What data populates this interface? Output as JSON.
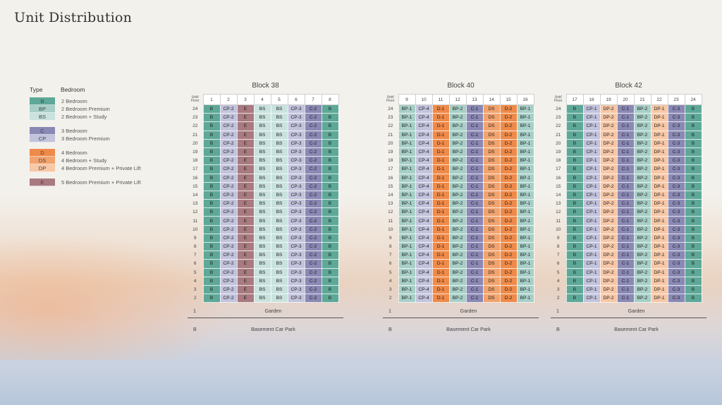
{
  "page": {
    "title": "Unit Distribution"
  },
  "legend": {
    "type_header": "Type",
    "bedroom_header": "Bedroom",
    "groups": [
      [
        {
          "code": "B",
          "label": "2 Bedroom"
        },
        {
          "code": "BP",
          "label": "2 Bedroom Premium"
        },
        {
          "code": "BS",
          "label": "2 Bedroom + Study"
        }
      ],
      [
        {
          "code": "C",
          "label": "3 Bedroom"
        },
        {
          "code": "CP",
          "label": "3 Bedroom Premium"
        }
      ],
      [
        {
          "code": "D",
          "label": "4 Bedroom"
        },
        {
          "code": "DS",
          "label": "4 Bedroom + Study"
        },
        {
          "code": "DP",
          "label": "4 Bedroom Premium + Private Lift"
        }
      ],
      [
        {
          "code": "E",
          "label": "5 Bedroom Premium + Private Lift"
        }
      ]
    ]
  },
  "colors": {
    "B": "#5ea897",
    "BP": "#a7cfc7",
    "BS": "#c9e2dd",
    "C": "#8a88b4",
    "CP": "#c2c3dc",
    "D": "#ef8a49",
    "DS": "#f2a36d",
    "DP": "#f7c7a6",
    "E": "#a97a80"
  },
  "corner_label": {
    "line1": "Unit/",
    "line2": "Floor"
  },
  "floors": [
    "24",
    "23",
    "22",
    "21",
    "20",
    "19",
    "18",
    "17",
    "16",
    "15",
    "14",
    "13",
    "12",
    "11",
    "10",
    "9",
    "8",
    "7",
    "6",
    "5",
    "4",
    "3",
    "2"
  ],
  "blocks": [
    {
      "title": "Block 38",
      "units": [
        "1",
        "2",
        "3",
        "4",
        "5",
        "6",
        "7",
        "8"
      ],
      "labels": [
        "B",
        "CP-2",
        "E",
        "BS",
        "BS",
        "CP-3",
        "C-2",
        "B"
      ],
      "types": [
        "B",
        "CP",
        "E",
        "BS",
        "BS",
        "CP",
        "C",
        "B"
      ]
    },
    {
      "title": "Block 40",
      "units": [
        "9",
        "10",
        "11",
        "12",
        "13",
        "14",
        "15",
        "16"
      ],
      "labels": [
        "BP-1",
        "CP-4",
        "D-1",
        "BP-2",
        "C-1",
        "DS",
        "D-2",
        "BP-1"
      ],
      "types": [
        "BP",
        "CP",
        "D",
        "BP",
        "C",
        "DS",
        "D",
        "BP"
      ]
    },
    {
      "title": "Block 42",
      "units": [
        "17",
        "18",
        "19",
        "20",
        "21",
        "22",
        "23",
        "24"
      ],
      "labels": [
        "B",
        "CP-1",
        "DP-2",
        "C-1",
        "BP-2",
        "DP-1",
        "C-3",
        "B"
      ],
      "types": [
        "B",
        "CP",
        "DP",
        "C",
        "BP",
        "DP",
        "C",
        "B"
      ]
    }
  ],
  "ground": {
    "floor": "1",
    "label": "Garden"
  },
  "basement": {
    "floor": "B",
    "label": "Basement Car Park"
  }
}
